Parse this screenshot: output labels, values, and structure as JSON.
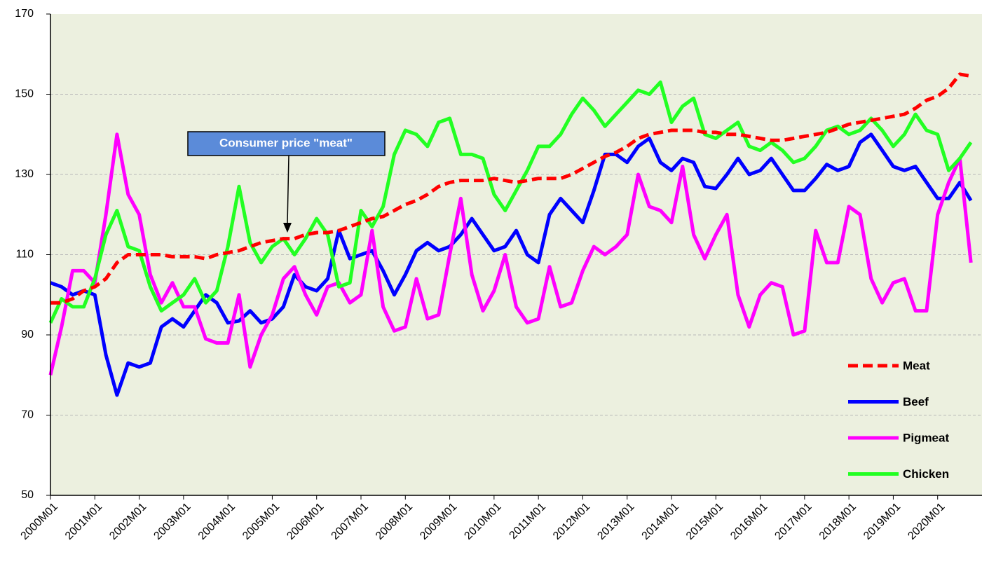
{
  "chart_data": {
    "type": "line",
    "annotation": "Consumer price \"meat\"",
    "categories": [
      "2000M01",
      null,
      null,
      null,
      "2001M01",
      null,
      null,
      null,
      "2002M01",
      null,
      null,
      null,
      "2003M01",
      null,
      null,
      null,
      "2004M01",
      null,
      null,
      null,
      "2005M01",
      null,
      null,
      null,
      "2006M01",
      null,
      null,
      null,
      "2007M01",
      null,
      null,
      null,
      "2008M01",
      null,
      null,
      null,
      "2009M01",
      null,
      null,
      null,
      "2010M01",
      null,
      null,
      null,
      "2011M01",
      null,
      null,
      null,
      "2012M01",
      null,
      null,
      null,
      "2013M01",
      null,
      null,
      null,
      "2014M01",
      null,
      null,
      null,
      "2015M01",
      null,
      null,
      null,
      "2016M01",
      null,
      null,
      null,
      "2017M01",
      null,
      null,
      null,
      "2018M01",
      null,
      null,
      null,
      "2019M01",
      null,
      null,
      null,
      "2020M01",
      null,
      null,
      null
    ],
    "series": [
      {
        "name": "Meat",
        "color": "#ff0000",
        "dashed": true,
        "values": [
          98,
          98,
          99,
          101,
          102,
          104,
          108,
          110,
          110,
          110,
          110,
          109.5,
          109.5,
          109.5,
          109,
          110,
          110.5,
          111,
          112,
          113,
          113.5,
          114,
          114,
          115,
          115.5,
          115.5,
          116,
          117,
          118,
          119,
          119.5,
          121,
          122.5,
          123.5,
          125,
          127,
          128,
          128.5,
          128.5,
          128.5,
          129,
          128.5,
          128,
          128.5,
          129,
          129,
          129,
          130,
          131.5,
          133,
          134.5,
          135.5,
          137,
          139,
          140,
          140.5,
          141,
          141,
          141,
          140.5,
          140.5,
          140,
          140,
          139.5,
          139,
          138.5,
          138.5,
          139,
          139.5,
          140,
          140.5,
          141.5,
          142.5,
          143,
          143.5,
          144,
          144.5,
          145,
          146.5,
          148.5,
          149.5,
          151.5,
          155,
          154.5
        ]
      },
      {
        "name": "Beef",
        "color": "#0000ff",
        "values": [
          103,
          102,
          100,
          101,
          100,
          85,
          75,
          83,
          82,
          83,
          92,
          94,
          92,
          96,
          100,
          98,
          93,
          93.5,
          96,
          93,
          94,
          97,
          105,
          102,
          101,
          104,
          116,
          109,
          110,
          111,
          106,
          100,
          105,
          111,
          113,
          111,
          112,
          115,
          119,
          115,
          111,
          112,
          116,
          110,
          108,
          120,
          124,
          121,
          118,
          126,
          135,
          135,
          133,
          137,
          139,
          133,
          131,
          134,
          133,
          127,
          126.5,
          130,
          134,
          130,
          131,
          134,
          130,
          126,
          126,
          129,
          132.5,
          131,
          132,
          138,
          140,
          136,
          132,
          131,
          132,
          128,
          124,
          124,
          128,
          123.5
        ]
      },
      {
        "name": "Pigmeat",
        "color": "#ff00ff",
        "values": [
          80,
          92,
          106,
          106,
          103,
          120,
          140,
          125,
          120,
          105,
          98,
          103,
          97,
          97,
          89,
          88,
          88,
          100,
          82,
          90,
          95,
          104,
          107,
          100,
          95,
          102,
          103,
          98,
          100,
          116,
          97,
          91,
          92,
          104,
          94,
          95,
          110,
          124,
          105,
          96,
          101,
          110,
          97,
          93,
          94,
          107,
          97,
          98,
          106,
          112,
          110,
          112,
          115,
          130,
          122,
          121,
          118,
          132,
          115,
          109,
          115,
          120,
          100,
          92,
          100,
          103,
          102,
          90,
          91,
          116,
          108,
          108,
          122,
          120,
          104,
          98,
          103,
          104,
          96,
          96,
          120,
          128,
          134,
          108
        ]
      },
      {
        "name": "Chicken",
        "color": "#22ff22",
        "values": [
          93,
          99,
          97,
          97,
          104,
          115,
          121,
          112,
          111,
          102,
          96,
          98,
          100,
          104,
          98,
          101,
          112,
          127,
          113,
          108,
          112,
          114,
          110,
          114,
          119,
          115,
          102,
          103,
          121,
          117,
          122,
          135,
          141,
          140,
          137,
          143,
          144,
          135,
          135,
          134,
          125,
          121,
          126,
          131,
          137,
          137,
          140,
          145,
          149,
          146,
          142,
          145,
          148,
          151,
          150,
          153,
          143,
          147,
          149,
          140,
          139,
          141,
          143,
          137,
          136,
          138,
          136,
          133,
          134,
          137,
          141,
          142,
          140,
          141,
          144,
          141,
          137,
          140,
          145,
          141,
          140,
          131,
          134,
          138
        ]
      }
    ],
    "ylim": [
      50,
      170
    ],
    "yticks": [
      50,
      70,
      90,
      110,
      130,
      150,
      170
    ],
    "grid": true,
    "legend": "lower right"
  }
}
